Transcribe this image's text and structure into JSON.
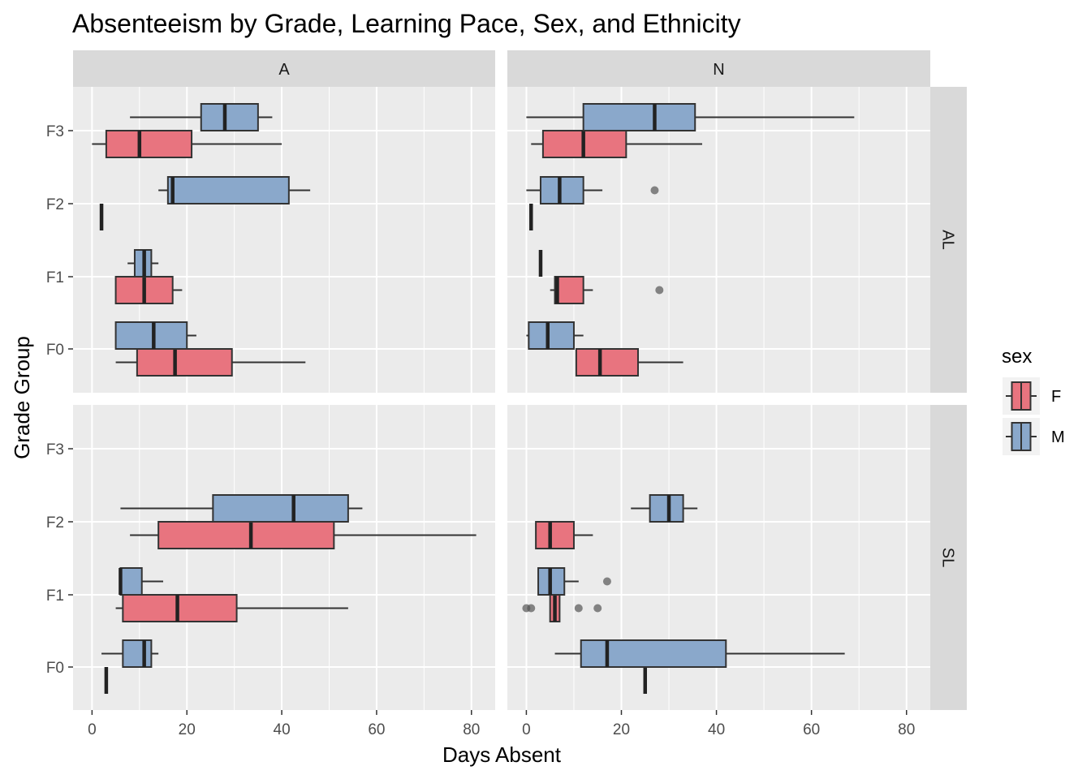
{
  "chart_data": {
    "type": "boxplot",
    "title": "Absenteeism by Grade, Learning Pace, Sex, and Ethnicity",
    "xlabel": "Days Absent",
    "ylabel": "Grade Group",
    "xlim": [
      -4,
      85
    ],
    "x_ticks": [
      0,
      20,
      40,
      60,
      80
    ],
    "x_tick_labels": [
      "0",
      "20",
      "40",
      "60",
      "80"
    ],
    "categories": [
      "F0",
      "F1",
      "F2",
      "F3"
    ],
    "facet_columns": [
      "A",
      "N"
    ],
    "facet_rows": [
      "AL",
      "SL"
    ],
    "legend": {
      "title": "sex",
      "position": "right",
      "entries": [
        {
          "label": "F",
          "color": "#E8747F"
        },
        {
          "label": "M",
          "color": "#8AA8CB"
        }
      ]
    },
    "grid": true,
    "panels": [
      {
        "col": "A",
        "row": "AL",
        "boxes": [
          {
            "category": "F0",
            "sex": "F",
            "min": 5,
            "q1": 9.5,
            "median": 17.5,
            "q3": 29.5,
            "max": 45,
            "outliers": []
          },
          {
            "category": "F0",
            "sex": "M",
            "min": 5,
            "q1": 5,
            "median": 13,
            "q3": 20,
            "max": 22,
            "outliers": []
          },
          {
            "category": "F1",
            "sex": "F",
            "min": 5,
            "q1": 5,
            "median": 11,
            "q3": 17,
            "max": 19,
            "outliers": []
          },
          {
            "category": "F1",
            "sex": "M",
            "min": 7.5,
            "q1": 9,
            "median": 11,
            "q3": 12.5,
            "max": 14,
            "outliers": []
          },
          {
            "category": "F2",
            "sex": "F",
            "min": 2,
            "q1": 2,
            "median": 2,
            "q3": 2,
            "max": 2,
            "outliers": []
          },
          {
            "category": "F2",
            "sex": "M",
            "min": 14,
            "q1": 16,
            "median": 17,
            "q3": 41.5,
            "max": 46,
            "outliers": []
          },
          {
            "category": "F3",
            "sex": "F",
            "min": 0,
            "q1": 3,
            "median": 10,
            "q3": 21,
            "max": 40,
            "outliers": []
          },
          {
            "category": "F3",
            "sex": "M",
            "min": 8,
            "q1": 23,
            "median": 28,
            "q3": 35,
            "max": 38,
            "outliers": []
          }
        ]
      },
      {
        "col": "N",
        "row": "AL",
        "boxes": [
          {
            "category": "F0",
            "sex": "F",
            "min": 10.5,
            "q1": 10.5,
            "median": 15.5,
            "q3": 23.5,
            "max": 33,
            "outliers": []
          },
          {
            "category": "F0",
            "sex": "M",
            "min": 0,
            "q1": 0.5,
            "median": 4.5,
            "q3": 10,
            "max": 12,
            "outliers": []
          },
          {
            "category": "F1",
            "sex": "F",
            "min": 5,
            "q1": 6,
            "median": 6.5,
            "q3": 12,
            "max": 14,
            "outliers": [
              28
            ]
          },
          {
            "category": "F1",
            "sex": "M",
            "min": 3,
            "q1": 3,
            "median": 3,
            "q3": 3,
            "max": 3,
            "outliers": []
          },
          {
            "category": "F2",
            "sex": "F",
            "min": 1,
            "q1": 1,
            "median": 1,
            "q3": 1,
            "max": 1,
            "outliers": []
          },
          {
            "category": "F2",
            "sex": "M",
            "min": 0,
            "q1": 3,
            "median": 7,
            "q3": 12,
            "max": 16,
            "outliers": [
              27
            ]
          },
          {
            "category": "F3",
            "sex": "F",
            "min": 1,
            "q1": 3.5,
            "median": 12,
            "q3": 21,
            "max": 37,
            "outliers": []
          },
          {
            "category": "F3",
            "sex": "M",
            "min": 0,
            "q1": 12,
            "median": 27,
            "q3": 35.5,
            "max": 69,
            "outliers": []
          }
        ]
      },
      {
        "col": "A",
        "row": "SL",
        "boxes": [
          {
            "category": "F0",
            "sex": "F",
            "min": 3,
            "q1": 3,
            "median": 3,
            "q3": 3,
            "max": 3,
            "outliers": []
          },
          {
            "category": "F0",
            "sex": "M",
            "min": 2,
            "q1": 6.5,
            "median": 11,
            "q3": 12.5,
            "max": 14,
            "outliers": []
          },
          {
            "category": "F1",
            "sex": "F",
            "min": 5,
            "q1": 6.5,
            "median": 18,
            "q3": 30.5,
            "max": 54,
            "outliers": []
          },
          {
            "category": "F1",
            "sex": "M",
            "min": 6,
            "q1": 6,
            "median": 6,
            "q3": 10.5,
            "max": 15,
            "outliers": []
          },
          {
            "category": "F2",
            "sex": "F",
            "min": 8,
            "q1": 14,
            "median": 33.5,
            "q3": 51,
            "max": 81,
            "outliers": []
          },
          {
            "category": "F2",
            "sex": "M",
            "min": 6,
            "q1": 25.5,
            "median": 42.5,
            "q3": 54,
            "max": 57,
            "outliers": []
          }
        ]
      },
      {
        "col": "N",
        "row": "SL",
        "boxes": [
          {
            "category": "F0",
            "sex": "F",
            "min": 25,
            "q1": 25,
            "median": 25,
            "q3": 25,
            "max": 25,
            "outliers": []
          },
          {
            "category": "F0",
            "sex": "M",
            "min": 6,
            "q1": 11.5,
            "median": 17,
            "q3": 42,
            "max": 67,
            "outliers": []
          },
          {
            "category": "F1",
            "sex": "F",
            "min": 5,
            "q1": 5,
            "median": 6,
            "q3": 7,
            "max": 7,
            "outliers": [
              0,
              1,
              11,
              15
            ]
          },
          {
            "category": "F1",
            "sex": "M",
            "min": 2.5,
            "q1": 2.5,
            "median": 5,
            "q3": 8,
            "max": 11,
            "outliers": [
              17
            ]
          },
          {
            "category": "F2",
            "sex": "F",
            "min": 2,
            "q1": 2,
            "median": 5,
            "q3": 10,
            "max": 14,
            "outliers": []
          },
          {
            "category": "F2",
            "sex": "M",
            "min": 22,
            "q1": 26,
            "median": 30,
            "q3": 33,
            "max": 36,
            "outliers": []
          }
        ]
      }
    ]
  }
}
